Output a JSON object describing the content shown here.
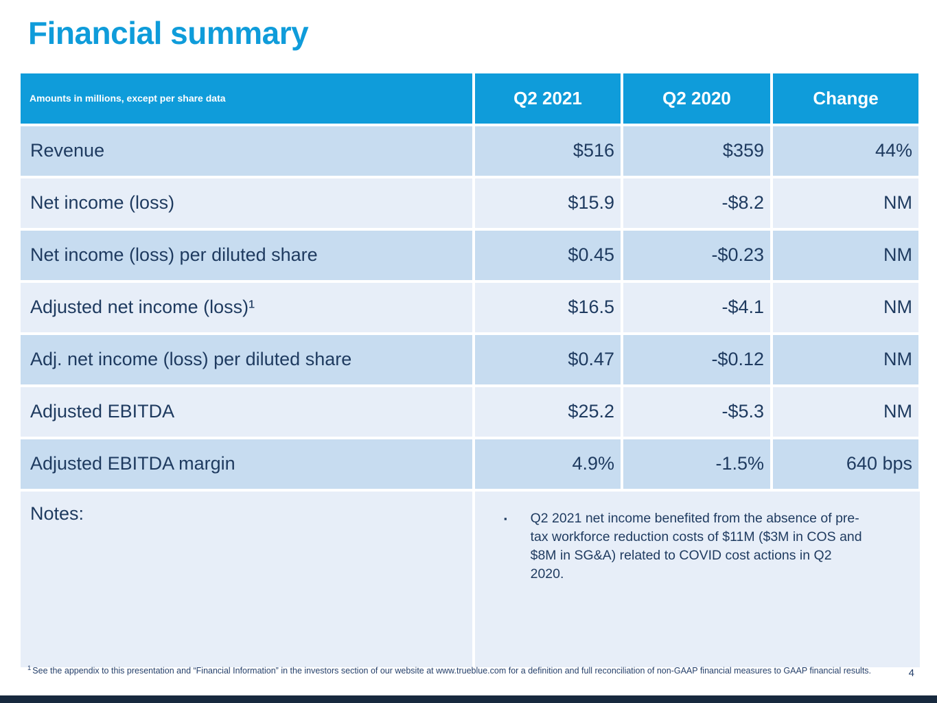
{
  "slide": {
    "title": "Financial summary",
    "page_number": "4"
  },
  "table": {
    "header": {
      "label": "Amounts in millions, except per share data",
      "columns": [
        "Q2 2021",
        "Q2 2020",
        "Change"
      ]
    },
    "rows": [
      {
        "label": "Revenue",
        "q2_2021": "$516",
        "q2_2020": "$359",
        "change": "44%"
      },
      {
        "label": "Net income (loss)",
        "q2_2021": "$15.9",
        "q2_2020": "-$8.2",
        "change": "NM"
      },
      {
        "label": "Net income (loss) per diluted share",
        "q2_2021": "$0.45",
        "q2_2020": "-$0.23",
        "change": "NM"
      },
      {
        "label": "Adjusted net income (loss)¹",
        "q2_2021": "$16.5",
        "q2_2020": "-$4.1",
        "change": "NM"
      },
      {
        "label": "Adj. net income (loss) per diluted share",
        "q2_2021": "$0.47",
        "q2_2020": "-$0.12",
        "change": "NM"
      },
      {
        "label": "Adjusted EBITDA",
        "q2_2021": "$25.2",
        "q2_2020": "-$5.3",
        "change": "NM"
      },
      {
        "label": "Adjusted EBITDA margin",
        "q2_2021": "4.9%",
        "q2_2020": "-1.5%",
        "change": "640 bps"
      }
    ],
    "notes": {
      "label": "Notes:",
      "bullet": "▪",
      "text": "Q2 2021 net income benefited from the absence of pre-tax workforce reduction costs of $11M ($3M in COS and $8M in SG&A) related to COVID cost actions in Q2 2020."
    }
  },
  "footnote": {
    "sup": "1",
    "text": "See the appendix to this presentation and “Financial Information” in the investors section of our website at www.trueblue.com for a definition and full reconciliation of non-GAAP financial measures to GAAP financial results."
  },
  "colors": {
    "accent_blue": "#0f9cda",
    "row_dark": "#c7dcf0",
    "row_light": "#e7eef8",
    "text_navy": "#1e3a5f",
    "footer_bar": "#17293e"
  }
}
